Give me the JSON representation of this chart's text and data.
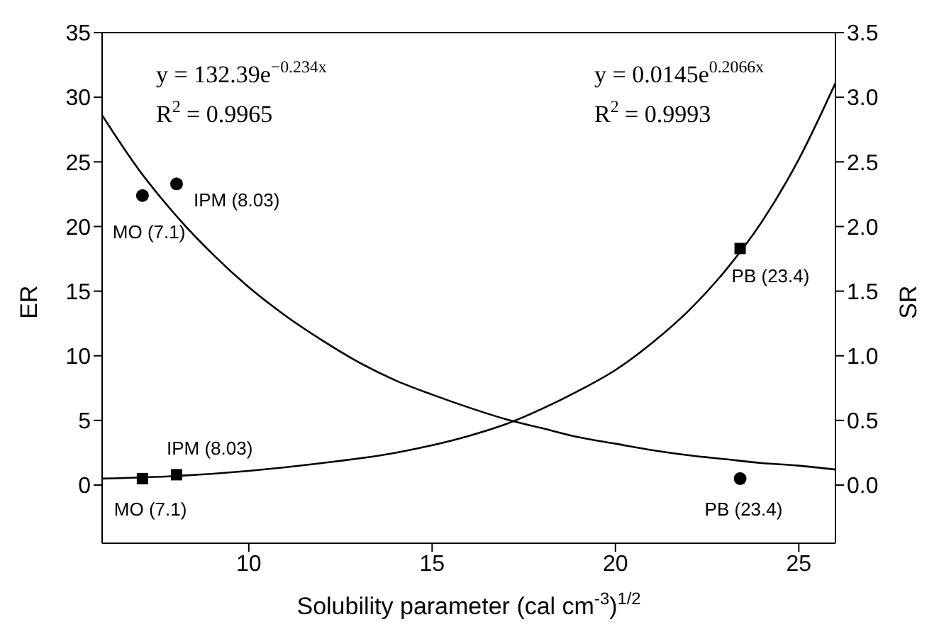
{
  "chart_data": {
    "type": "scatter",
    "xlabel": "Solubility parameter (cal cm$^{-3}$)$^{1/2}$",
    "ylabel": "ER",
    "y2label": "SR",
    "xlim": [
      6,
      26
    ],
    "xticks": [
      10,
      15,
      20,
      25
    ],
    "ylim": [
      -4.5,
      35
    ],
    "yticks": [
      0,
      5,
      10,
      15,
      20,
      25,
      30,
      35
    ],
    "y2lim": [
      -0.45,
      3.5
    ],
    "y2ticks": [
      {
        "value": 0,
        "label": "0.0"
      },
      {
        "value": 0.5,
        "label": "0.5"
      },
      {
        "value": 1,
        "label": "1.0"
      },
      {
        "value": 1.5,
        "label": "1.5"
      },
      {
        "value": 2,
        "label": "2.0"
      },
      {
        "value": 2.5,
        "label": "2.5"
      },
      {
        "value": 3,
        "label": "3.0"
      },
      {
        "value": 3.5,
        "label": "3.5"
      }
    ],
    "annotations": [
      "y = 132.39e$^{−0.234x}$",
      "R$^{2}$ = 0.9965",
      "y = 0.0145e$^{0.2066x}$",
      "R$^{2}$ = 0.9993",
      "MO (7.1)",
      "IPM (8.03)",
      "PB (23.4)",
      "MO (7.1)",
      "IPM (8.03)",
      "PB (23.4)"
    ],
    "series": [
      {
        "color": "#000000",
        "marker": "circle",
        "x": [
          7.1,
          8.03,
          23.4
        ],
        "values": [
          22.4,
          23.3,
          0.5
        ]
      },
      {
        "axis": "y2",
        "color": "#000000",
        "marker": "square",
        "x": [
          7.1,
          8.03,
          23.4
        ],
        "values": [
          0.05,
          0.08,
          1.83
        ]
      },
      {
        "type": "line",
        "color": "#000000",
        "marker": "none",
        "x": [
          6,
          7,
          8,
          9,
          10,
          11,
          12,
          13,
          14,
          15,
          16,
          17,
          18,
          19,
          20,
          21,
          22,
          23,
          24,
          25,
          26
        ],
        "values": [
          28.6,
          24.4,
          20.9,
          17.9,
          15.3,
          13.1,
          11.2,
          9.5,
          8.1,
          7.0,
          6.0,
          5.1,
          4.4,
          3.7,
          3.2,
          2.7,
          2.3,
          2.0,
          1.7,
          1.5,
          1.2
        ]
      },
      {
        "type": "line",
        "axis": "y2",
        "color": "#000000",
        "marker": "none",
        "x": [
          6,
          8,
          10,
          12,
          14,
          16,
          17,
          18,
          19,
          20,
          21,
          22,
          23,
          24,
          25,
          26
        ],
        "values": [
          0.05,
          0.07,
          0.11,
          0.17,
          0.25,
          0.38,
          0.47,
          0.59,
          0.73,
          0.89,
          1.1,
          1.35,
          1.66,
          2.04,
          2.52,
          3.11
        ]
      }
    ]
  }
}
